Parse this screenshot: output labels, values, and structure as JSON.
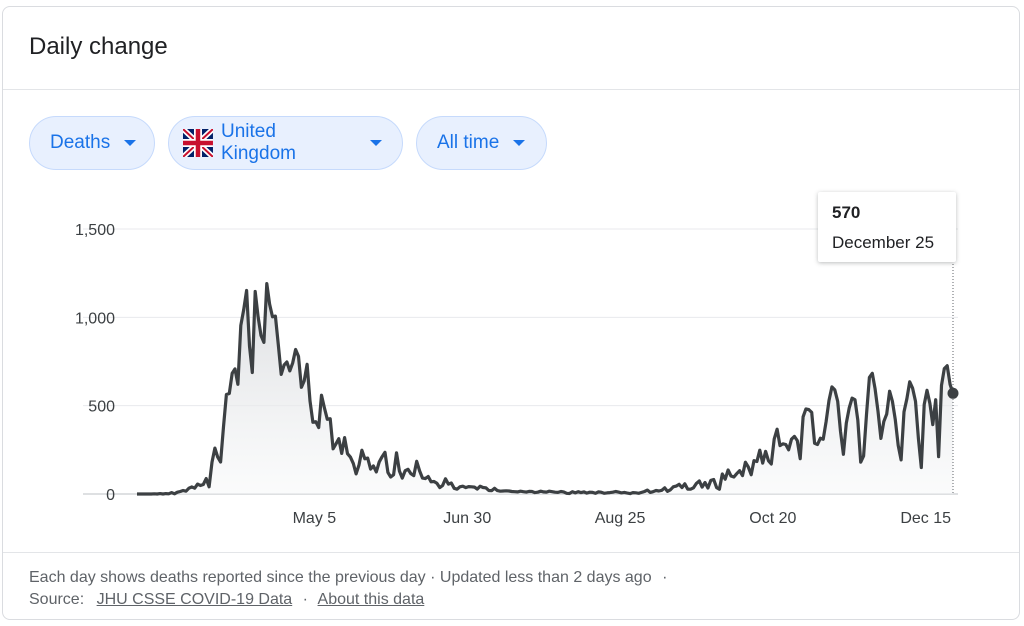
{
  "card": {
    "title": "Daily change"
  },
  "filters": {
    "metric": {
      "label": "Deaths"
    },
    "region": {
      "label": "United Kingdom",
      "flag": "uk-flag-icon"
    },
    "range": {
      "label": "All time"
    }
  },
  "tooltip": {
    "value": "570",
    "date": "December 25"
  },
  "footer": {
    "line1": "Each day shows deaths reported since the previous day · Updated less than 2 days ago",
    "line1_sep": "·",
    "source_label": "Source:",
    "source_link": "JHU CSSE COVID-19 Data",
    "sep": "·",
    "about_link": "About this data"
  },
  "colors": {
    "line": "#3c4043",
    "chip_bg": "#e8f0fe",
    "chip_text": "#1a73e8",
    "grid": "#e8eaed"
  },
  "chart_data": {
    "type": "area",
    "title": "",
    "xlabel": "",
    "ylabel": "",
    "ylim": [
      0,
      1500
    ],
    "yticks": [
      0,
      500,
      1000,
      1500
    ],
    "ytick_labels": [
      "0",
      "500",
      "1,000",
      "1,500"
    ],
    "xticks": [
      {
        "label": "May 5",
        "x": "2020-05-05"
      },
      {
        "label": "Jun 30",
        "x": "2020-06-30"
      },
      {
        "label": "Aug 25",
        "x": "2020-08-25"
      },
      {
        "label": "Oct 20",
        "x": "2020-10-20"
      },
      {
        "label": "Dec 15",
        "x": "2020-12-15"
      }
    ],
    "x_start": "2020-03-01",
    "x_end": "2020-12-25",
    "series": [
      {
        "name": "",
        "values": [
          0,
          0,
          0,
          0,
          0,
          0,
          1,
          0,
          2,
          0,
          2,
          1,
          8,
          1,
          10,
          14,
          20,
          16,
          33,
          40,
          33,
          56,
          48,
          54,
          87,
          41,
          180,
          260,
          209,
          181,
          381,
          563,
          569,
          684,
          708,
          621,
          954,
          1043,
          1152,
          837,
          688,
          1146,
          1003,
          897,
          858,
          1191,
          1075,
          1003,
          1007,
          845,
          677,
          730,
          747,
          697,
          742,
          818,
          779,
          604,
          640,
          734,
          527,
          406,
          409,
          376,
          559,
          488,
          423,
          426,
          256,
          284,
          313,
          230,
          319,
          228,
          209,
          173,
          114,
          164,
          248,
          199,
          203,
          141,
          159,
          125,
          181,
          211,
          236,
          122,
          96,
          109,
          233,
          130,
          90,
          132,
          140,
          115,
          104,
          185,
          131,
          90,
          87,
          99,
          69,
          71,
          61,
          36,
          48,
          86,
          56,
          62,
          32,
          27,
          41,
          44,
          36,
          42,
          41,
          39,
          28,
          44,
          37,
          35,
          20,
          19,
          32,
          19,
          16,
          17,
          18,
          17,
          14,
          13,
          12,
          16,
          13,
          11,
          15,
          14,
          8,
          10,
          16,
          12,
          11,
          16,
          13,
          10,
          9,
          14,
          12,
          4,
          3,
          13,
          6,
          13,
          8,
          12,
          5,
          10,
          9,
          4,
          12,
          10,
          4,
          6,
          8,
          10,
          14,
          11,
          6,
          9,
          5,
          2,
          8,
          7,
          4,
          9,
          14,
          22,
          9,
          13,
          20,
          17,
          21,
          35,
          15,
          24,
          41,
          45,
          55,
          36,
          58,
          28,
          27,
          35,
          60,
          74,
          39,
          65,
          34,
          77,
          82,
          36,
          27,
          113,
          84,
          136,
          102,
          96,
          115,
          132,
          104,
          180,
          153,
          109,
          189,
          184,
          248,
          175,
          241,
          188,
          170,
          311,
          367,
          274,
          284,
          280,
          250,
          310,
          326,
          302,
          200,
          437,
          481,
          478,
          462,
          287,
          280,
          316,
          310,
          410,
          529,
          606,
          589,
          524,
          355,
          225,
          401,
          487,
          543,
          533,
          419,
          180,
          215,
          450,
          660,
          683,
          595,
          468,
          315,
          410,
          452,
          582,
          525,
          420,
          275,
          193,
          465,
          540,
          635,
          599,
          525,
          315,
          150,
          506,
          587,
          512,
          393,
          534,
          211,
          615,
          710,
          726,
          620,
          570
        ]
      }
    ],
    "highlight": {
      "x": "2020-12-25",
      "y": 570,
      "label_value": "570",
      "label_date": "December 25"
    },
    "grid": true,
    "legend": "none"
  }
}
